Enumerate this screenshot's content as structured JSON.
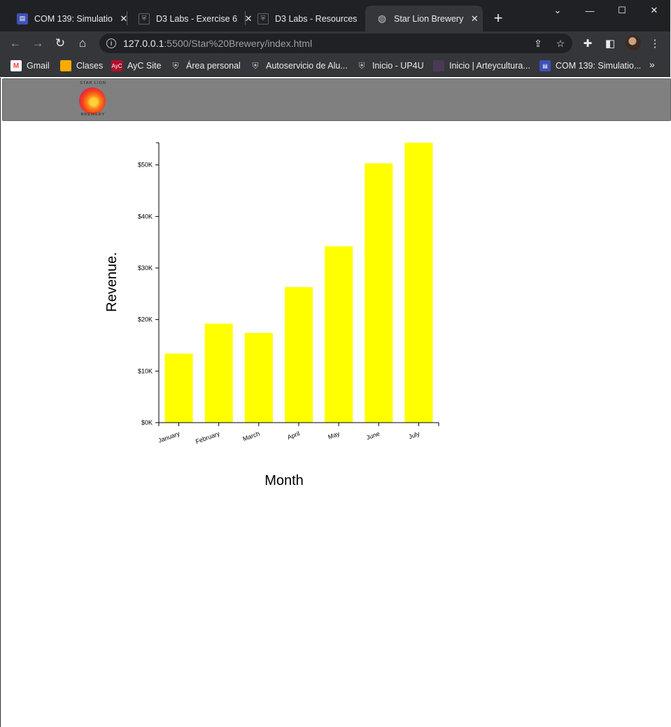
{
  "browser": {
    "tabs": [
      {
        "title": "COM 139: Simulatio",
        "icon": "course-icon",
        "active": false
      },
      {
        "title": "D3 Labs - Exercise 6",
        "icon": "shield-icon",
        "active": false
      },
      {
        "title": "D3 Labs - Resources",
        "icon": "shield-icon",
        "active": false
      },
      {
        "title": "Star Lion Brewery",
        "icon": "globe-icon",
        "active": true
      }
    ],
    "address": {
      "host": "127.0.0.1",
      "rest": ":5500/Star%20Brewery/index.html"
    },
    "bookmarks": [
      {
        "label": "Gmail",
        "icon": "gmail-icon"
      },
      {
        "label": "Clases",
        "icon": "classroom-icon"
      },
      {
        "label": "AyC Site",
        "icon": "ayc-icon"
      },
      {
        "label": "Área personal",
        "icon": "shield-icon"
      },
      {
        "label": "Autoservicio de Alu...",
        "icon": "shield-icon"
      },
      {
        "label": "Inicio - UP4U",
        "icon": "shield-icon"
      },
      {
        "label": "Inicio | Arteycultura...",
        "icon": "arte-icon"
      },
      {
        "label": "COM 139: Simulatio...",
        "icon": "course-icon"
      }
    ]
  },
  "header": {
    "logo_top": "STAR LION",
    "logo_bottom": "BREWERY"
  },
  "chart_data": {
    "type": "bar",
    "categories": [
      "January",
      "February",
      "March",
      "April",
      "May",
      "June",
      "July"
    ],
    "values": [
      13400,
      19200,
      17400,
      26300,
      34200,
      50300,
      54300
    ],
    "xlabel": "Month",
    "ylabel": "Revenue.",
    "ylim": [
      0,
      54300
    ],
    "yticks": [
      0,
      10000,
      20000,
      30000,
      40000,
      50000
    ],
    "ytick_labels": [
      "$0K",
      "$10K",
      "$20K",
      "$30K",
      "$40K",
      "$50K"
    ],
    "bar_color": "#ffff00",
    "grid": false
  }
}
